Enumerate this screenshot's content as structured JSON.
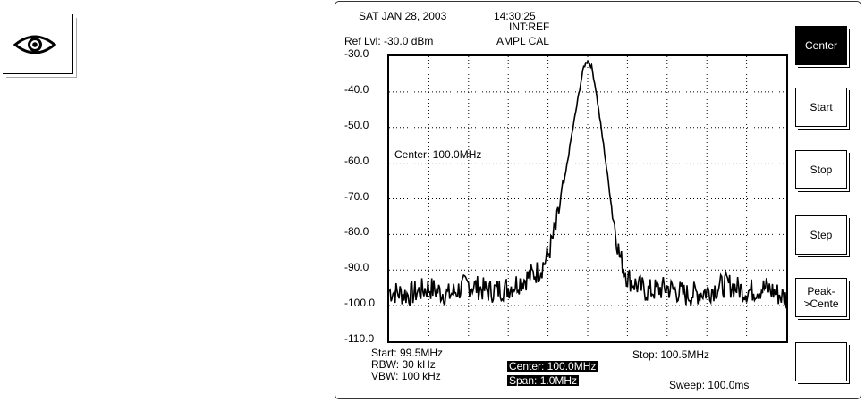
{
  "header": {
    "date": "SAT JAN 28,  2003",
    "time": "14:30:25",
    "ref_source": "INT:REF",
    "ref_level": "Ref  Lvl: -30.0 dBm",
    "ampl_cal": "AMPL   CAL"
  },
  "marker_label": "Center: 100.0MHz",
  "chart_data": {
    "type": "line",
    "ylabel": "",
    "xlabel": "",
    "ylim": [
      -110,
      -30
    ],
    "xlim": [
      99.5,
      100.5
    ],
    "y_ticks": [
      "-30.0",
      "-40.0",
      "-50.0",
      "-60.0",
      "-70.0",
      "-80.0",
      "-90.0",
      "-100.0",
      "-110.0"
    ],
    "grid": true,
    "series": [
      {
        "x": [
          99.5,
          99.55,
          99.6,
          99.65,
          99.7,
          99.75,
          99.8,
          99.85,
          99.88,
          99.9,
          99.92,
          99.94,
          99.96,
          99.98,
          99.99,
          100.0,
          100.01,
          100.02,
          100.04,
          100.06,
          100.08,
          100.1,
          100.12,
          100.15,
          100.2,
          100.25,
          100.3,
          100.35,
          100.4,
          100.45,
          100.5
        ],
        "y": [
          -96,
          -97,
          -95,
          -97,
          -94,
          -96,
          -95,
          -92,
          -90,
          -86,
          -78,
          -66,
          -52,
          -39,
          -33,
          -31,
          -33,
          -39,
          -55,
          -72,
          -86,
          -92,
          -94,
          -96,
          -95,
          -97,
          -96,
          -94,
          -96,
          -95,
          -98
        ]
      }
    ]
  },
  "footer": {
    "start": "Start: 99.5MHz",
    "stop": "Stop: 100.5MHz",
    "rbw": "RBW: 30 kHz",
    "vbw": "VBW: 100 kHz",
    "center": "Center: 100.0MHz",
    "span": "Span: 1.0MHz",
    "sweep": "Sweep: 100.0ms"
  },
  "softkeys": [
    "Center",
    "Start",
    "Stop",
    "Step",
    "Peak-\n>Cente",
    ""
  ],
  "softkeys_active_index": 0,
  "icons": {
    "eye": "eye-icon"
  }
}
